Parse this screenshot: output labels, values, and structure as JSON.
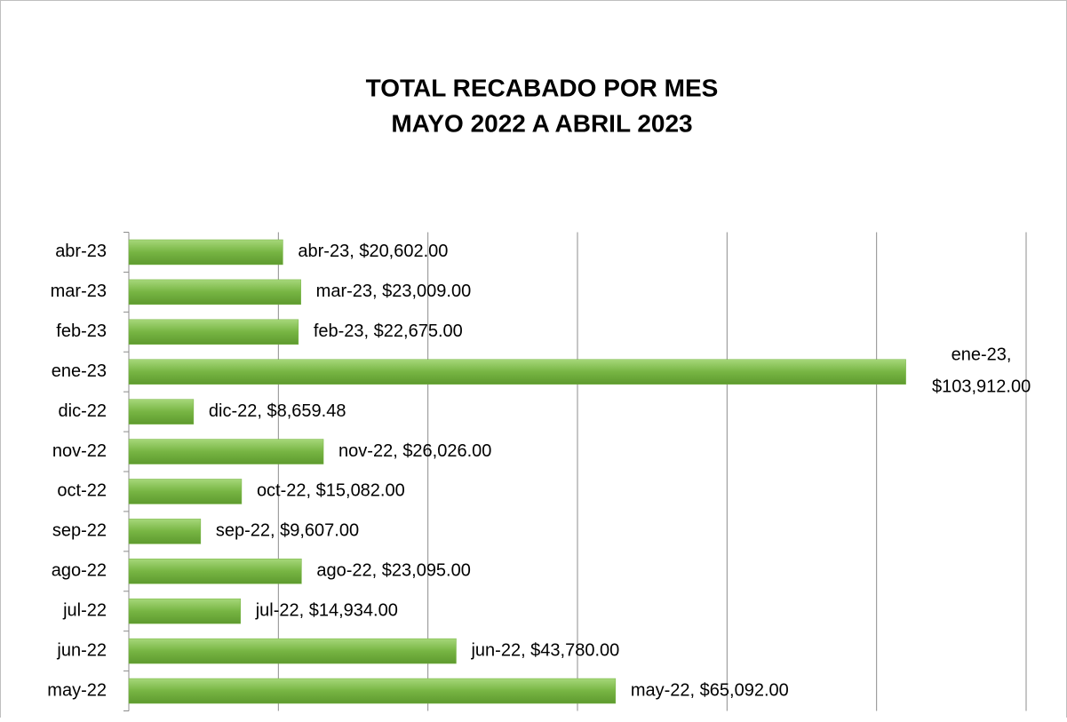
{
  "chart_data": {
    "type": "barh",
    "title": "TOTAL RECABADO POR MES",
    "subtitle": "MAYO 2022 A ABRIL 2023",
    "categories": [
      "may-22",
      "jun-22",
      "jul-22",
      "ago-22",
      "sep-22",
      "oct-22",
      "nov-22",
      "dic-22",
      "ene-23",
      "feb-23",
      "mar-23",
      "abr-23"
    ],
    "values": [
      65092,
      43780,
      14934,
      23095,
      9607,
      15082,
      26026,
      8659.48,
      103912,
      22675,
      23009,
      20602
    ],
    "value_labels": [
      "may-22,  $65,092.00",
      "jun-22,  $43,780.00",
      "jul-22,  $14,934.00",
      "ago-22,  $23,095.00",
      "sep-22,  $9,607.00",
      "oct-22,  $15,082.00",
      "nov-22,  $26,026.00",
      "dic-22,  $8,659.48",
      "ene-23, $103,912.00",
      "feb-23,  $22,675.00",
      "mar-23,  $23,009.00",
      "abr-23,  $20,602.00"
    ],
    "color": "#77b543",
    "xlim": [
      0,
      120000
    ],
    "xticks": [
      0,
      20000,
      40000,
      60000,
      80000,
      100000,
      120000
    ],
    "grid": true
  }
}
